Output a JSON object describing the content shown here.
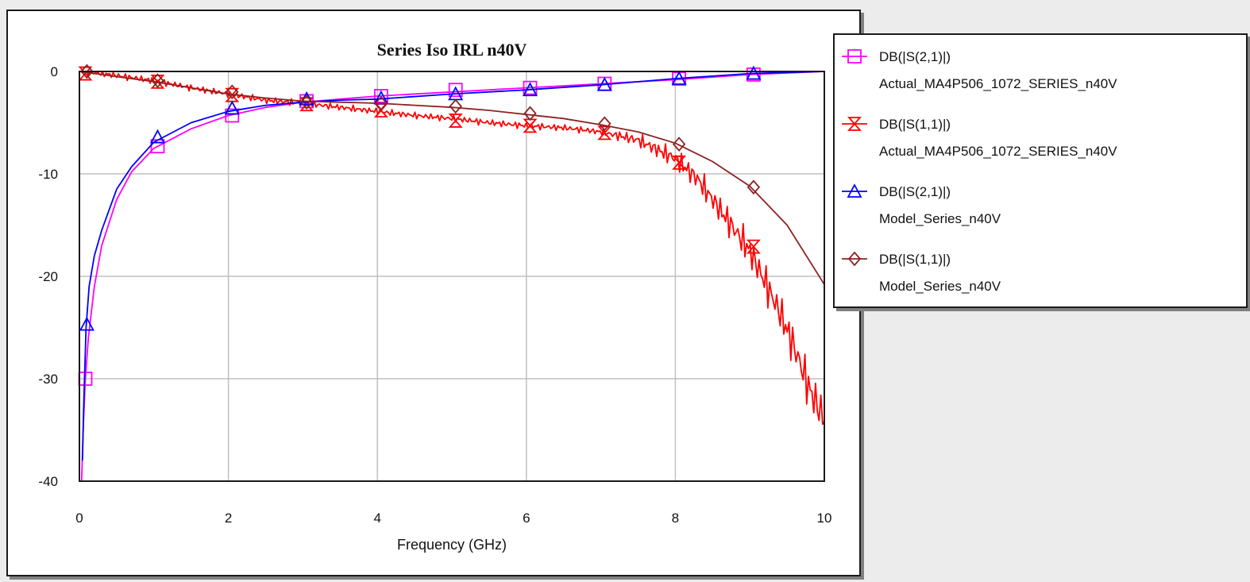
{
  "chart_data": {
    "type": "line",
    "title": "Series Iso IRL n40V",
    "xlabel": "Frequency (GHz)",
    "ylabel": "",
    "xlim": [
      0,
      10
    ],
    "ylim": [
      -40,
      0
    ],
    "xticks": [
      0,
      2,
      4,
      6,
      8,
      10
    ],
    "yticks": [
      0,
      -10,
      -20,
      -30,
      -40
    ],
    "grid": true,
    "legend_position": "right",
    "series": [
      {
        "name": "DB(|S(2,1)|)",
        "source": "Actual_MA4P506_1072_SERIES_n40V",
        "color": "#ff00ff",
        "marker": "square",
        "noise": 0,
        "x": [
          0.03,
          0.05,
          0.08,
          0.12,
          0.2,
          0.3,
          0.5,
          0.7,
          1.0,
          1.5,
          2.0,
          2.5,
          3.0,
          3.5,
          4.0,
          5.0,
          6.0,
          7.0,
          8.0,
          9.0,
          10.0
        ],
        "y": [
          -40,
          -35,
          -30,
          -26,
          -21,
          -17,
          -12.5,
          -9.8,
          -7.5,
          -5.6,
          -4.3,
          -3.5,
          -3.0,
          -2.7,
          -2.4,
          -2.0,
          -1.6,
          -1.2,
          -0.8,
          -0.3,
          0
        ],
        "markers_x": [
          0.08,
          1.05,
          2.05,
          3.05,
          4.05,
          5.05,
          6.05,
          7.05,
          8.05,
          9.05
        ],
        "markers_y": [
          -30,
          -7.3,
          -4.3,
          -2.9,
          -2.4,
          -1.8,
          -1.6,
          -1.2,
          -0.7,
          -0.3
        ]
      },
      {
        "name": "DB(|S(1,1)|)",
        "source": "Actual_MA4P506_1072_SERIES_n40V",
        "color": "#ff0000",
        "marker": "hourglass",
        "noise": 0.35,
        "x": [
          0.05,
          0.3,
          0.6,
          1.0,
          1.5,
          2.0,
          2.5,
          3.0,
          3.5,
          4.0,
          4.5,
          5.0,
          5.5,
          6.0,
          6.5,
          7.0,
          7.5,
          8.0,
          8.3,
          8.6,
          9.0,
          9.2,
          9.4,
          9.6,
          9.8,
          10.0
        ],
        "y": [
          0,
          -0.2,
          -0.5,
          -0.9,
          -1.6,
          -2.2,
          -2.8,
          -3.1,
          -3.5,
          -3.9,
          -4.3,
          -4.6,
          -5.0,
          -5.3,
          -5.5,
          -5.9,
          -6.7,
          -8.5,
          -10.5,
          -13.5,
          -17.5,
          -20.5,
          -23.5,
          -27,
          -31,
          -34
        ],
        "markers_x": [
          0.08,
          1.05,
          2.05,
          3.05,
          4.05,
          5.05,
          6.05,
          7.05,
          8.05,
          9.05
        ],
        "markers_y": [
          -0.2,
          -1.0,
          -2.3,
          -3.2,
          -3.8,
          -4.8,
          -5.3,
          -6.0,
          -8.9,
          -17.1
        ]
      },
      {
        "name": "DB(|S(2,1)|)",
        "source": "Model_Series_n40V",
        "color": "#0000ff",
        "marker": "triangle",
        "noise": 0,
        "x": [
          0.04,
          0.06,
          0.09,
          0.13,
          0.2,
          0.3,
          0.5,
          0.7,
          1.0,
          1.5,
          2.0,
          2.5,
          3.0,
          3.5,
          4.0,
          5.0,
          6.0,
          7.0,
          8.0,
          9.0,
          10.0
        ],
        "y": [
          -38,
          -32,
          -25,
          -21,
          -18,
          -15.5,
          -11.5,
          -9.3,
          -6.9,
          -5.0,
          -3.9,
          -3.3,
          -3.0,
          -2.8,
          -2.7,
          -2.2,
          -1.8,
          -1.3,
          -0.7,
          -0.2,
          0
        ],
        "markers_x": [
          0.1,
          1.05,
          2.05,
          3.05,
          4.05,
          5.05,
          6.05,
          7.05,
          8.05,
          9.05
        ],
        "markers_y": [
          -24.7,
          -6.4,
          -3.6,
          -2.7,
          -2.6,
          -2.2,
          -1.8,
          -1.3,
          -0.7,
          -0.2
        ]
      },
      {
        "name": "DB(|S(1,1)|)",
        "source": "Model_Series_n40V",
        "color": "#8b2323",
        "marker": "diamond",
        "noise": 0,
        "x": [
          0.0,
          0.5,
          1.0,
          1.5,
          2.0,
          2.5,
          3.0,
          3.5,
          4.0,
          4.5,
          5.0,
          5.5,
          6.0,
          6.5,
          7.0,
          7.5,
          8.0,
          8.5,
          9.0,
          9.5,
          10.0
        ],
        "y": [
          0,
          -0.5,
          -1.0,
          -1.6,
          -2.2,
          -2.6,
          -2.9,
          -3.0,
          -3.1,
          -3.3,
          -3.5,
          -3.8,
          -4.2,
          -4.6,
          -5.2,
          -5.9,
          -7.0,
          -8.8,
          -11.2,
          -15.0,
          -20.8
        ],
        "markers_x": [
          0.1,
          1.05,
          2.05,
          3.05,
          4.05,
          5.05,
          6.05,
          7.05,
          8.05,
          9.05
        ],
        "markers_y": [
          0,
          -0.9,
          -2.0,
          -3.0,
          -3.1,
          -3.4,
          -4.1,
          -5.1,
          -7.1,
          -11.3
        ]
      }
    ]
  }
}
